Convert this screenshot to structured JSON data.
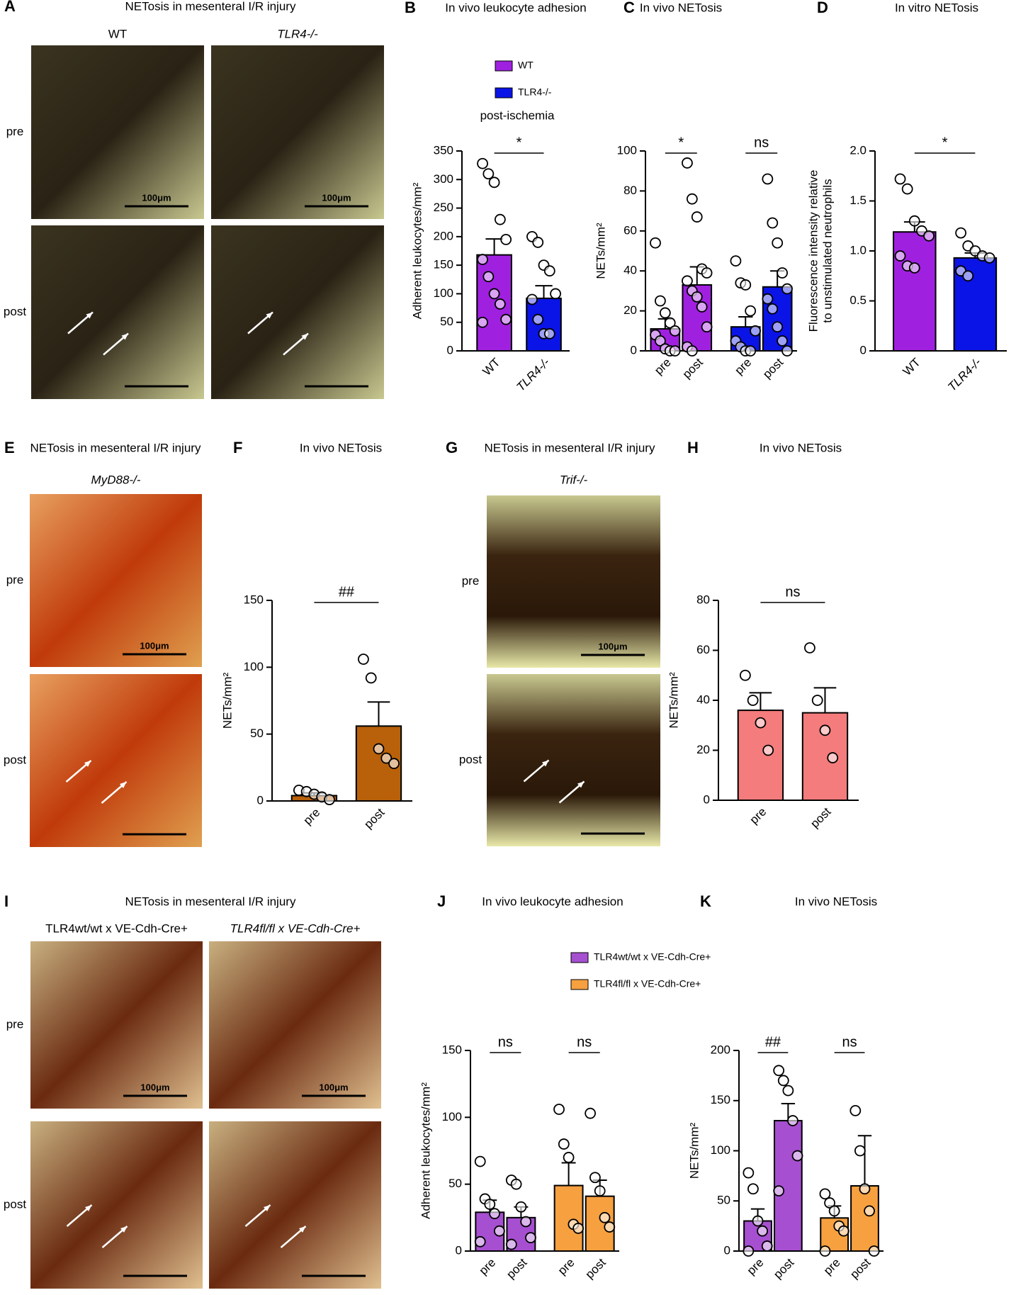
{
  "figure": {
    "image_panels": [
      {
        "letter": "A",
        "title": "NETosis in mesenteral I/R injury",
        "columns": [
          "WT",
          "TLR4-/-"
        ],
        "rows": [
          "pre",
          "post"
        ],
        "scale_bar": "100μm"
      },
      {
        "letter": "E",
        "title": "NETosis in mesenteral I/R injury",
        "columns": [
          "MyD88-/-"
        ],
        "rows": [
          "pre",
          "post"
        ],
        "scale_bar": "100μm"
      },
      {
        "letter": "G",
        "title": "NETosis in mesenteral I/R injury",
        "columns": [
          "Trif-/-"
        ],
        "rows": [
          "pre",
          "post"
        ],
        "scale_bar": "100μm"
      },
      {
        "letter": "I",
        "title": "NETosis in mesenteral I/R injury",
        "columns": [
          "TLR4wt/wt x VE-Cdh-Cre+",
          "TLR4fl/fl x VE-Cdh-Cre+"
        ],
        "rows": [
          "pre",
          "post"
        ],
        "scale_bar": "100μm"
      }
    ]
  },
  "chart_data": [
    {
      "type": "bar",
      "letter": "B",
      "title": "In vivo leukocyte adhesion",
      "subtitle": "post-ischemia",
      "legend": [
        {
          "name": "WT",
          "color": "#a020e0"
        },
        {
          "name": "TLR4-/-",
          "color": "#0a14e6"
        }
      ],
      "y_label": [
        "Adherent leukocytes/mm²"
      ],
      "categories": [
        "WT",
        "TLR4-/-"
      ],
      "values": [
        168,
        92
      ],
      "errors": [
        28,
        22
      ],
      "colors": [
        "#a020e0",
        "#0a14e6"
      ],
      "points": [
        [
          328,
          310,
          295,
          230,
          195,
          160,
          130,
          100,
          82,
          55,
          50
        ],
        [
          200,
          190,
          150,
          140,
          100,
          90,
          55,
          30,
          30
        ]
      ],
      "significance": [
        "*"
      ],
      "ylim": [
        0,
        350
      ],
      "yticks": [
        0,
        50,
        100,
        150,
        200,
        250,
        300,
        350
      ]
    },
    {
      "type": "bar",
      "letter": "C",
      "title": "In vivo NETosis",
      "y_label": [
        "NETs/mm²"
      ],
      "categories": [
        "pre",
        "post",
        "pre",
        "post"
      ],
      "values": [
        11,
        33,
        12,
        32
      ],
      "errors": [
        5,
        9,
        5,
        8
      ],
      "colors": [
        "#a020e0",
        "#a020e0",
        "#0a14e6",
        "#0a14e6"
      ],
      "points": [
        [
          54,
          25,
          19,
          14,
          10,
          8,
          5,
          1,
          0,
          0
        ],
        [
          94,
          76,
          67,
          41,
          39,
          35,
          30,
          27,
          22,
          12,
          2,
          0
        ],
        [
          45,
          34,
          33,
          20,
          10,
          5,
          2,
          0,
          0
        ],
        [
          86,
          64,
          54,
          39,
          31,
          26,
          21,
          12,
          5,
          0
        ]
      ],
      "significance": [
        "*",
        "ns"
      ],
      "ylim": [
        0,
        100
      ],
      "yticks": [
        0,
        20,
        40,
        60,
        80,
        100
      ]
    },
    {
      "type": "bar",
      "letter": "D",
      "title": "In vitro NETosis",
      "y_label": [
        "Fluorescence intensity relative",
        "to unstimulated neutrophils"
      ],
      "categories": [
        "WT",
        "TLR4-/-"
      ],
      "values": [
        1.19,
        0.93
      ],
      "errors": [
        0.1,
        0.05
      ],
      "colors": [
        "#a020e0",
        "#0a14e6"
      ],
      "points": [
        [
          1.72,
          1.62,
          1.3,
          1.2,
          1.15,
          0.95,
          0.85,
          0.83
        ],
        [
          1.18,
          1.05,
          1.0,
          0.95,
          0.93,
          0.8,
          0.75
        ]
      ],
      "significance": [
        "*"
      ],
      "ylim": [
        0,
        2
      ],
      "yticks": [
        0,
        0.5,
        {
          "value": 1,
          "label": "1.0"
        },
        1.5,
        {
          "value": 2,
          "label": "2.0"
        }
      ]
    },
    {
      "type": "bar",
      "letter": "F",
      "title": "In vivo NETosis",
      "y_label": [
        "NETs/mm²"
      ],
      "categories": [
        "pre",
        "post"
      ],
      "values": [
        4,
        56
      ],
      "errors": [
        2,
        18
      ],
      "colors": [
        "#b8610a",
        "#b8610a"
      ],
      "points": [
        [
          8,
          7,
          5,
          3,
          1
        ],
        [
          106,
          92,
          39,
          32,
          28
        ]
      ],
      "significance": [
        "##"
      ],
      "ylim": [
        0,
        150
      ],
      "yticks": [
        0,
        50,
        100,
        150
      ]
    },
    {
      "type": "bar",
      "letter": "H",
      "title": "In vivo NETosis",
      "y_label": [
        "NETs/mm²"
      ],
      "categories": [
        "pre",
        "post"
      ],
      "values": [
        36,
        35
      ],
      "errors": [
        7,
        10
      ],
      "colors": [
        "#f47c7c",
        "#f47c7c"
      ],
      "points": [
        [
          50,
          40,
          31,
          20
        ],
        [
          61,
          40,
          28,
          17
        ]
      ],
      "significance": [
        "ns"
      ],
      "ylim": [
        0,
        80
      ],
      "yticks": [
        0,
        20,
        40,
        60,
        80
      ]
    },
    {
      "type": "bar",
      "letter": "J",
      "title": "In vivo leukocyte adhesion",
      "legend": [
        {
          "name": "TLR4wt/wt x VE-Cdh-Cre+",
          "color": "#a64fd0"
        },
        {
          "name": "TLR4fl/fl x VE-Cdh-Cre+",
          "color": "#f6a040"
        }
      ],
      "y_label": [
        "Adherent leukocytes/mm²"
      ],
      "categories": [
        "pre",
        "post",
        "pre",
        "post"
      ],
      "values": [
        29,
        25,
        49,
        41
      ],
      "errors": [
        9,
        8,
        17,
        12
      ],
      "colors": [
        "#a64fd0",
        "#a64fd0",
        "#f6a040",
        "#f6a040"
      ],
      "points": [
        [
          67,
          39,
          35,
          28,
          15,
          7
        ],
        [
          53,
          50,
          33,
          22,
          10,
          5
        ],
        [
          106,
          80,
          70,
          20,
          17
        ],
        [
          103,
          55,
          45,
          25,
          18
        ]
      ],
      "significance": [
        "ns",
        "ns"
      ],
      "ylim": [
        0,
        150
      ],
      "yticks": [
        0,
        50,
        100,
        150
      ]
    },
    {
      "type": "bar",
      "letter": "K",
      "title": "In vivo NETosis",
      "y_label": [
        "NETs/mm²"
      ],
      "categories": [
        "pre",
        "post",
        "pre",
        "post"
      ],
      "values": [
        30,
        130,
        33,
        65
      ],
      "errors": [
        12,
        17,
        12,
        50
      ],
      "colors": [
        "#a64fd0",
        "#a64fd0",
        "#f6a040",
        "#f6a040"
      ],
      "points": [
        [
          78,
          62,
          30,
          20,
          5,
          0
        ],
        [
          180,
          170,
          160,
          130,
          95,
          60
        ],
        [
          57,
          48,
          40,
          25,
          20,
          0
        ],
        [
          140,
          100,
          62,
          40,
          0
        ]
      ],
      "significance": [
        "##",
        "ns"
      ],
      "ylim": [
        0,
        200
      ],
      "yticks": [
        0,
        50,
        100,
        150,
        200
      ]
    }
  ]
}
